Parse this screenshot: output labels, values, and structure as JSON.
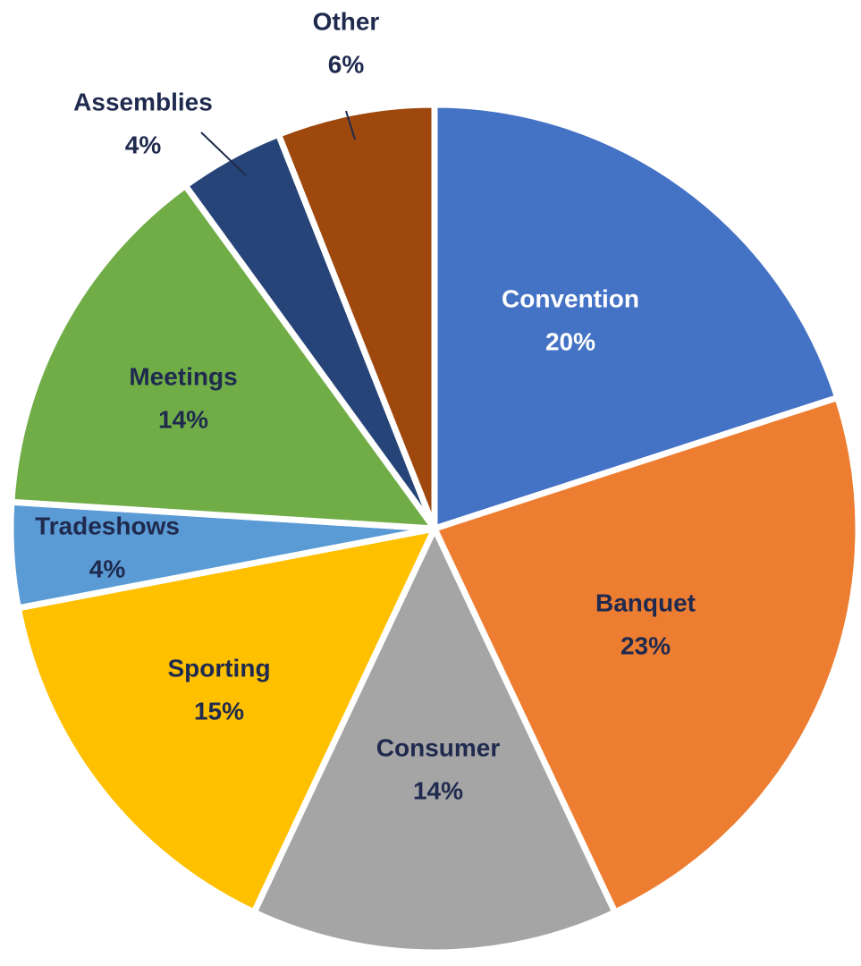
{
  "chart_data": {
    "type": "pie",
    "categories": [
      "Convention",
      "Banquet",
      "Consumer",
      "Sporting",
      "Tradeshows",
      "Meetings",
      "Assemblies",
      "Other"
    ],
    "values": [
      20,
      23,
      14,
      15,
      4,
      14,
      4,
      6
    ],
    "value_labels": [
      "20%",
      "23%",
      "14%",
      "15%",
      "4%",
      "14%",
      "4%",
      "6%"
    ],
    "colors": [
      "#4472c4",
      "#ed7d31",
      "#a5a5a5",
      "#ffc000",
      "#5b9bd5",
      "#70ad47",
      "#264478",
      "#9e480e"
    ]
  }
}
